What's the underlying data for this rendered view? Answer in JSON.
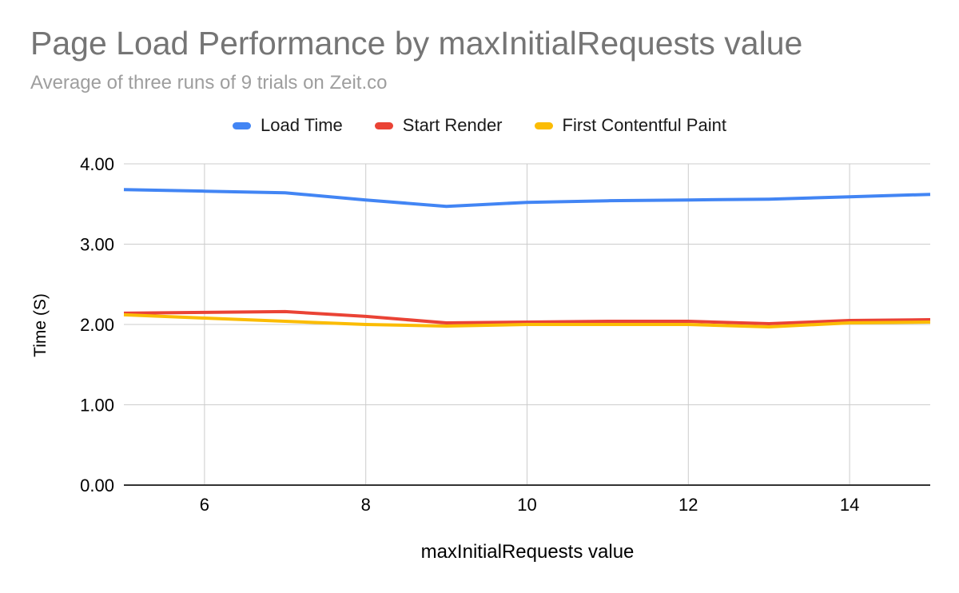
{
  "chart_data": {
    "type": "line",
    "title": "Page Load Performance by maxInitialRequests value",
    "subtitle": "Average of three runs of 9 trials on Zeit.co",
    "xlabel": "maxInitialRequests value",
    "ylabel": "Time (S)",
    "x": [
      5,
      6,
      7,
      8,
      9,
      10,
      11,
      12,
      13,
      14,
      15
    ],
    "series": [
      {
        "name": "Load Time",
        "color": "#4285F4",
        "values": [
          3.68,
          3.66,
          3.64,
          3.55,
          3.47,
          3.52,
          3.54,
          3.55,
          3.56,
          3.59,
          3.62
        ]
      },
      {
        "name": "Start Render",
        "color": "#EA4335",
        "values": [
          2.14,
          2.15,
          2.16,
          2.1,
          2.02,
          2.03,
          2.04,
          2.04,
          2.01,
          2.05,
          2.06
        ]
      },
      {
        "name": "First Contentful Paint",
        "color": "#FBBC04",
        "values": [
          2.12,
          2.08,
          2.04,
          2.0,
          1.98,
          2.0,
          2.0,
          2.0,
          1.97,
          2.02,
          2.03
        ]
      }
    ],
    "xlim": [
      5,
      15
    ],
    "ylim": [
      0,
      4
    ],
    "x_ticks": [
      "6",
      "8",
      "10",
      "12",
      "14"
    ],
    "y_ticks": [
      "0.00",
      "1.00",
      "2.00",
      "3.00",
      "4.00"
    ],
    "grid": true,
    "legend_position": "top"
  },
  "colors": {
    "title_text": "#757575",
    "subtitle_text": "#9e9e9e",
    "gridline": "#cccccc",
    "axis_line": "#333333",
    "tick_text": "#000000",
    "background": "#ffffff"
  }
}
